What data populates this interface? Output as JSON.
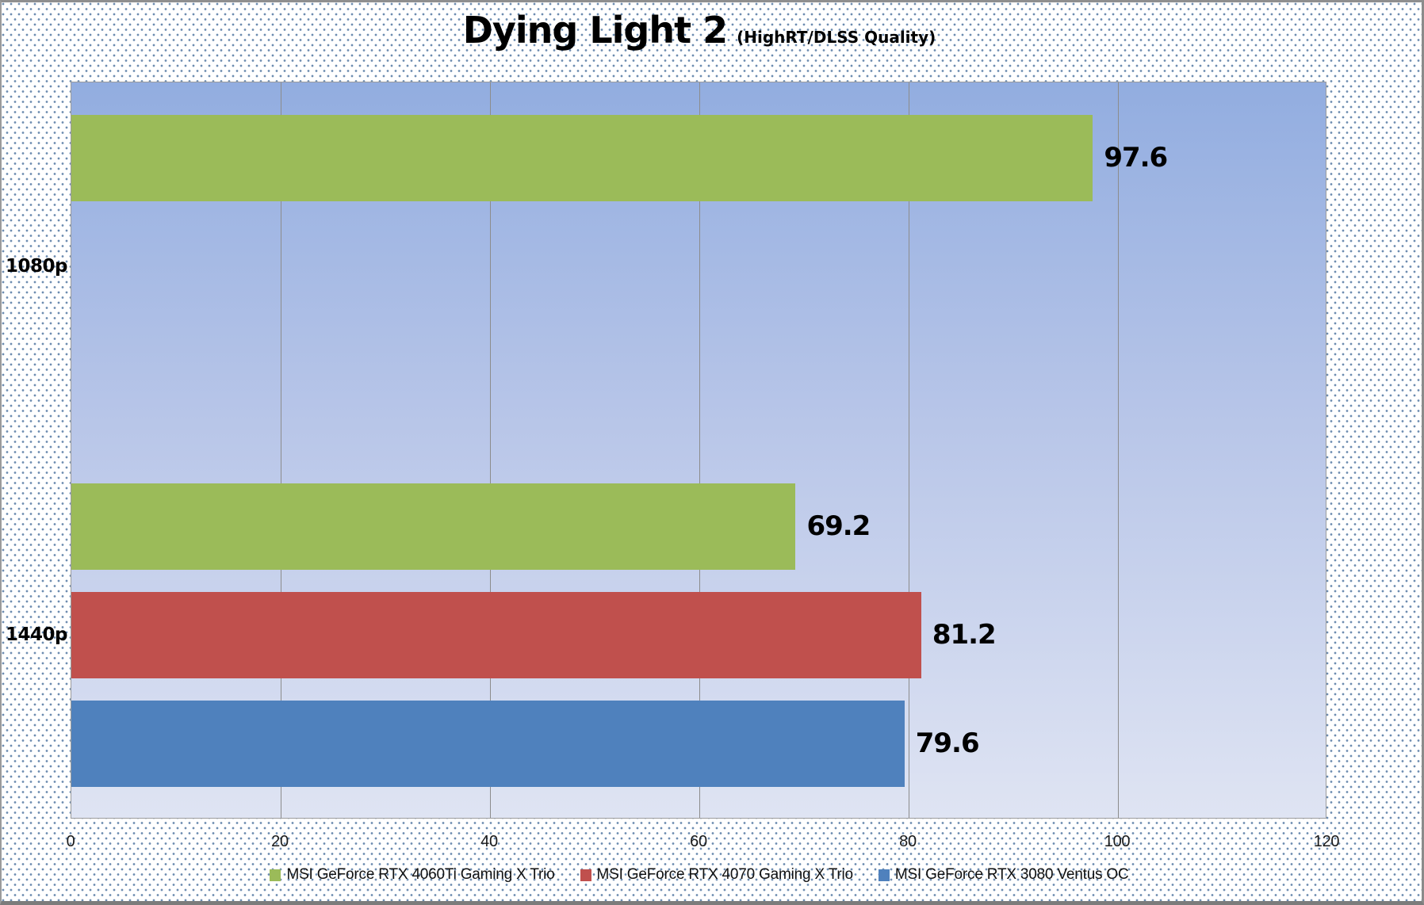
{
  "title": {
    "main": "Dying Light 2",
    "subtitle": "(HighRT/DLSS Quality)"
  },
  "chart_data": {
    "type": "bar",
    "orientation": "horizontal",
    "title": "Dying Light 2 (HighRT/DLSS Quality)",
    "categories": [
      "1080p",
      "1440p"
    ],
    "series": [
      {
        "name": "MSI GeForce RTX 4060Ti Gaming X Trio",
        "color": "#9BBB59",
        "values": [
          97.6,
          69.2
        ]
      },
      {
        "name": "MSI GeForce RTX 4070 Gaming X Trio",
        "color": "#C0504D",
        "values": [
          null,
          81.2
        ]
      },
      {
        "name": "MSI GeForce RTX 3080 Ventus OC",
        "color": "#4F81BD",
        "values": [
          null,
          79.6
        ]
      }
    ],
    "xlim": [
      0,
      120
    ],
    "x_ticks": [
      0,
      20,
      40,
      60,
      80,
      100,
      120
    ],
    "grid": true,
    "gridline_color": "#8c8c8c",
    "plot_bg_gradient": [
      "#92ade0",
      "#dfe4f3"
    ],
    "legend_position": "bottom",
    "value_labels": [
      "97.6",
      "69.2",
      "81.2",
      "79.6"
    ]
  }
}
